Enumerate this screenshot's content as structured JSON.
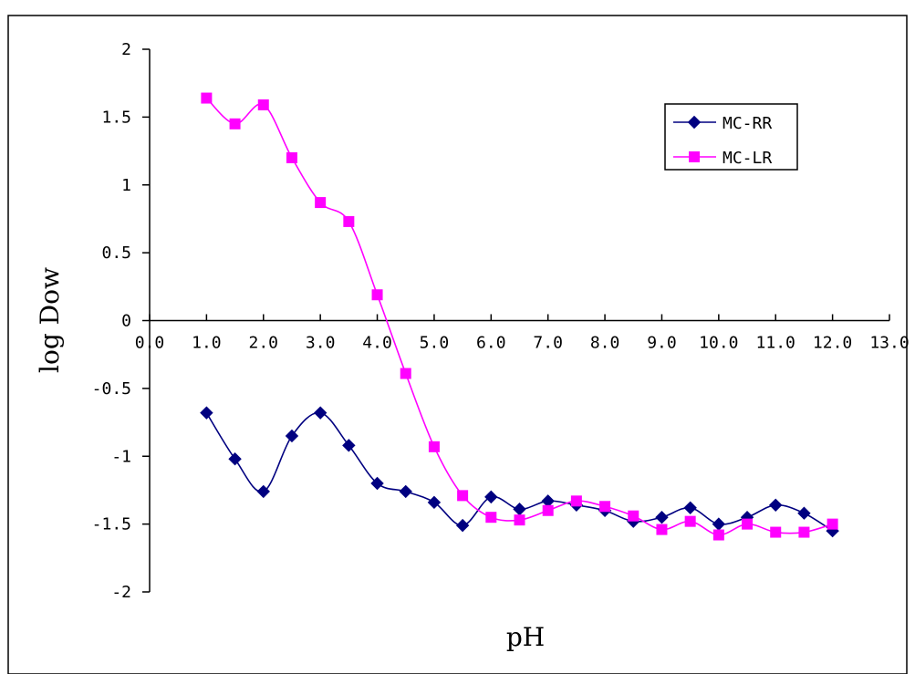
{
  "chart_data": {
    "type": "line",
    "title": "",
    "xlabel": "pH",
    "ylabel": "log Dow",
    "xlim": [
      0,
      13
    ],
    "ylim": [
      -2,
      2
    ],
    "x_ticks": [
      "0.0",
      "1.0",
      "2.0",
      "3.0",
      "4.0",
      "5.0",
      "6.0",
      "7.0",
      "8.0",
      "9.0",
      "10.0",
      "11.0",
      "12.0",
      "13.0"
    ],
    "y_ticks": [
      "2",
      "1.5",
      "1",
      "0.5",
      "0",
      "-0.5",
      "-1",
      "-1.5",
      "-2"
    ],
    "grid": false,
    "legend_position": "top-right",
    "series": [
      {
        "name": "MC-RR",
        "color": "#000080",
        "marker": "diamond",
        "x": [
          1.0,
          1.5,
          2.0,
          2.5,
          3.0,
          3.5,
          4.0,
          4.5,
          5.0,
          5.5,
          6.0,
          6.5,
          7.0,
          7.5,
          8.0,
          8.5,
          9.0,
          9.5,
          10.0,
          10.5,
          11.0,
          11.5,
          12.0
        ],
        "y": [
          -0.68,
          -1.02,
          -1.26,
          -0.85,
          -0.68,
          -0.92,
          -1.2,
          -1.26,
          -1.34,
          -1.51,
          -1.3,
          -1.39,
          -1.33,
          -1.36,
          -1.4,
          -1.48,
          -1.45,
          -1.38,
          -1.5,
          -1.45,
          -1.36,
          -1.42,
          -1.55
        ]
      },
      {
        "name": "MC-LR",
        "color": "#FF00FF",
        "marker": "square",
        "x": [
          1.0,
          1.5,
          2.0,
          2.5,
          3.0,
          3.5,
          4.0,
          4.5,
          5.0,
          5.5,
          6.0,
          6.5,
          7.0,
          7.5,
          8.0,
          8.5,
          9.0,
          9.5,
          10.0,
          10.5,
          11.0,
          11.5,
          12.0
        ],
        "y": [
          1.64,
          1.45,
          1.59,
          1.2,
          0.87,
          0.73,
          0.19,
          -0.39,
          -0.93,
          -1.29,
          -1.45,
          -1.47,
          -1.4,
          -1.33,
          -1.37,
          -1.44,
          -1.54,
          -1.48,
          -1.58,
          -1.5,
          -1.56,
          -1.56,
          -1.5
        ]
      }
    ]
  }
}
